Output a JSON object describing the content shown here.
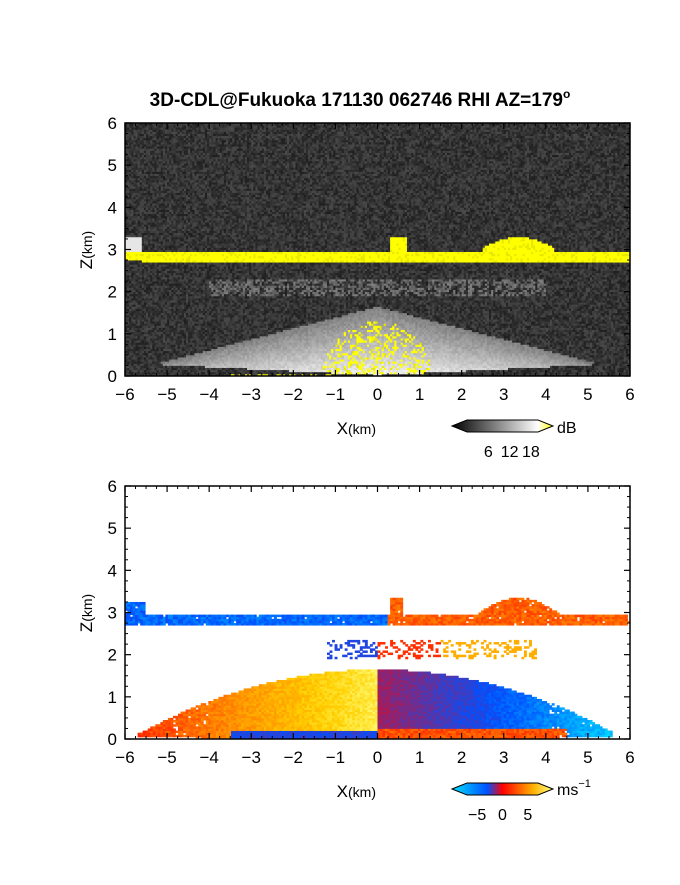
{
  "title": "3D-CDL@Fukuoka 171130 062746 RHI AZ=179",
  "title_superscript": "o",
  "chart_data": [
    {
      "type": "heatmap",
      "panel": "reflectivity",
      "xlabel_main": "X",
      "xlabel_unit": "(km)",
      "ylabel_main": "Z",
      "ylabel_unit": "(km)",
      "xlim": [
        -6,
        6
      ],
      "ylim": [
        0,
        6
      ],
      "x_ticks": [
        "−6",
        "−5",
        "−4",
        "−3",
        "−2",
        "−1",
        "0",
        "1",
        "2",
        "3",
        "4",
        "5",
        "6"
      ],
      "y_ticks": [
        "0",
        "1",
        "2",
        "3",
        "4",
        "5",
        "6"
      ],
      "colorbar": {
        "label": "dB",
        "tick_labels": [
          "6",
          "12",
          "18"
        ],
        "tick_values": [
          6,
          12,
          18
        ],
        "range": [
          0,
          20
        ],
        "colors": [
          "#000000",
          "#ffffff",
          "#ffff00"
        ]
      },
      "features": {
        "cloud_layer_base_km": 2.7,
        "cloud_layer_top_km": 2.95,
        "bright_region_top_km": 1.6,
        "background_color": "#2b2b2b",
        "highlight_color": "#ffff00"
      }
    },
    {
      "type": "heatmap",
      "panel": "doppler_velocity",
      "xlabel_main": "X",
      "xlabel_unit": "(km)",
      "ylabel_main": "Z",
      "ylabel_unit": "(km)",
      "xlim": [
        -6,
        6
      ],
      "ylim": [
        0,
        6
      ],
      "x_ticks": [
        "−6",
        "−5",
        "−4",
        "−3",
        "−2",
        "−1",
        "0",
        "1",
        "2",
        "3",
        "4",
        "5",
        "6"
      ],
      "y_ticks": [
        "0",
        "1",
        "2",
        "3",
        "4",
        "5",
        "6"
      ],
      "colorbar": {
        "label_main": "ms",
        "label_exp": "−1",
        "tick_labels": [
          "−5",
          "0",
          "5"
        ],
        "tick_values": [
          -5,
          0,
          5
        ],
        "range": [
          -7,
          7
        ],
        "colors": [
          "#00e0ff",
          "#0050ff",
          "#ff0000",
          "#ffd000",
          "#ffff80"
        ]
      },
      "features": {
        "cloud_layer_base_km": 2.7,
        "cloud_layer_top_km": 3.1,
        "lower_region_top_km": 1.65,
        "negative_color": "#1a6cff",
        "positive_color": "#ff3a10"
      }
    }
  ]
}
